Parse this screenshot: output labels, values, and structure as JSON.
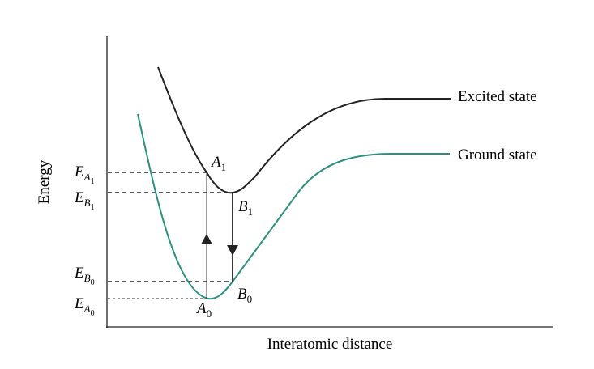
{
  "axes": {
    "x_label": "Interatomic distance",
    "y_label": "Energy"
  },
  "curves": [
    {
      "label": "Excited state"
    },
    {
      "label": "Ground state"
    }
  ],
  "levels": [
    {
      "symbol": "E",
      "sub": "A",
      "subsub": "1"
    },
    {
      "symbol": "E",
      "sub": "B",
      "subsub": "1"
    },
    {
      "symbol": "E",
      "sub": "B",
      "subsub": "0"
    },
    {
      "symbol": "E",
      "sub": "A",
      "subsub": "0"
    }
  ],
  "points": [
    {
      "symbol": "A",
      "sub": "1"
    },
    {
      "symbol": "B",
      "sub": "1"
    },
    {
      "symbol": "B",
      "sub": "0"
    },
    {
      "symbol": "A",
      "sub": "0"
    }
  ]
}
